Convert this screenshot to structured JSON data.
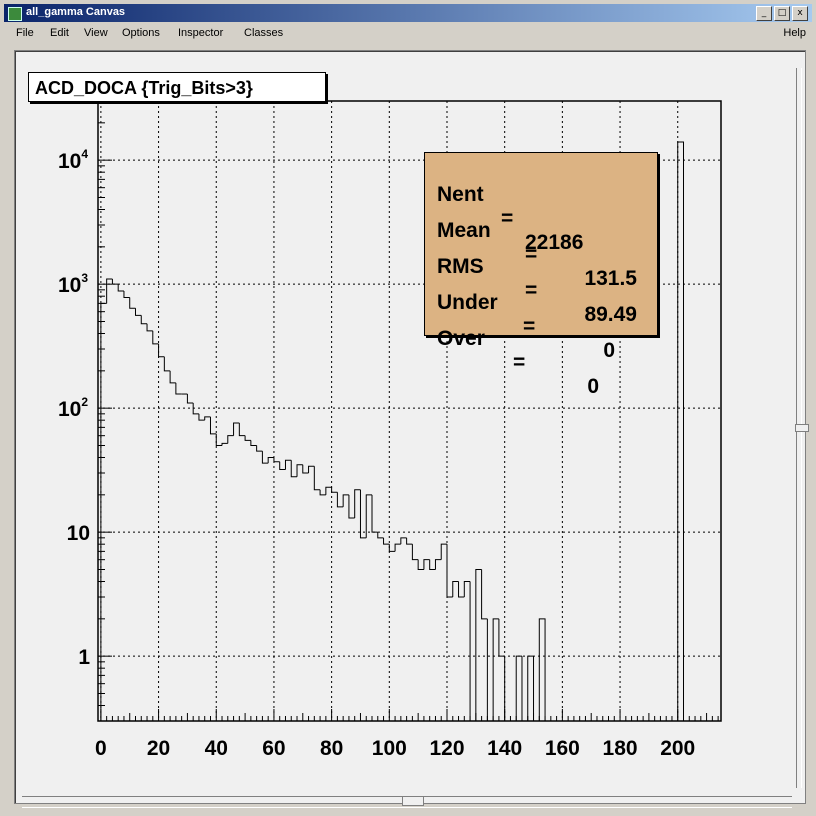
{
  "window": {
    "title": "all_gamma Canvas",
    "buttons": [
      "_",
      "□",
      "x"
    ]
  },
  "menu": {
    "items": [
      "File",
      "Edit",
      "View",
      "Options",
      "Inspector",
      "Classes"
    ],
    "help": "Help"
  },
  "histogram_title": "ACD_DOCA {Trig_Bits>3}",
  "stats": {
    "nent_label": "Nent",
    "nent_value": "22186",
    "mean_label": "Mean",
    "mean_value": "131.5",
    "rms_label": "RMS",
    "rms_value": "89.49",
    "under_label": "Under",
    "under_value": "0",
    "over_label": "Over",
    "over_value": "0",
    "box_color": "#dcb383"
  },
  "chart_data": {
    "type": "histogram",
    "title": "ACD_DOCA {Trig_Bits>3}",
    "xlim": [
      -1,
      215
    ],
    "ylim": [
      0.3,
      30000
    ],
    "yscale": "log",
    "grid": true,
    "bin_width": 2,
    "x_ticks": [
      "0",
      "20",
      "40",
      "60",
      "80",
      "100",
      "120",
      "140",
      "160",
      "180",
      "200"
    ],
    "x_tick_values": [
      0,
      20,
      40,
      60,
      80,
      100,
      120,
      140,
      160,
      180,
      200
    ],
    "y_ticks": [
      "1",
      "10",
      "10^2",
      "10^3",
      "10^4"
    ],
    "y_tick_values": [
      1,
      10,
      100,
      1000,
      10000
    ],
    "bins": [
      {
        "x0": 0,
        "x1": 2,
        "y": 700
      },
      {
        "x0": 2,
        "x1": 4,
        "y": 1100
      },
      {
        "x0": 4,
        "x1": 6,
        "y": 1000
      },
      {
        "x0": 6,
        "x1": 8,
        "y": 880
      },
      {
        "x0": 8,
        "x1": 10,
        "y": 780
      },
      {
        "x0": 10,
        "x1": 12,
        "y": 640
      },
      {
        "x0": 12,
        "x1": 14,
        "y": 560
      },
      {
        "x0": 14,
        "x1": 16,
        "y": 480
      },
      {
        "x0": 16,
        "x1": 18,
        "y": 420
      },
      {
        "x0": 18,
        "x1": 20,
        "y": 330
      },
      {
        "x0": 20,
        "x1": 22,
        "y": 260
      },
      {
        "x0": 22,
        "x1": 24,
        "y": 200
      },
      {
        "x0": 24,
        "x1": 26,
        "y": 160
      },
      {
        "x0": 26,
        "x1": 28,
        "y": 130
      },
      {
        "x0": 28,
        "x1": 30,
        "y": 130
      },
      {
        "x0": 30,
        "x1": 32,
        "y": 110
      },
      {
        "x0": 32,
        "x1": 34,
        "y": 90
      },
      {
        "x0": 34,
        "x1": 36,
        "y": 80
      },
      {
        "x0": 36,
        "x1": 38,
        "y": 85
      },
      {
        "x0": 38,
        "x1": 40,
        "y": 62
      },
      {
        "x0": 40,
        "x1": 42,
        "y": 50
      },
      {
        "x0": 42,
        "x1": 44,
        "y": 52
      },
      {
        "x0": 44,
        "x1": 46,
        "y": 60
      },
      {
        "x0": 46,
        "x1": 48,
        "y": 76
      },
      {
        "x0": 48,
        "x1": 50,
        "y": 60
      },
      {
        "x0": 50,
        "x1": 52,
        "y": 55
      },
      {
        "x0": 52,
        "x1": 54,
        "y": 50
      },
      {
        "x0": 54,
        "x1": 56,
        "y": 45
      },
      {
        "x0": 56,
        "x1": 58,
        "y": 36
      },
      {
        "x0": 58,
        "x1": 60,
        "y": 40
      },
      {
        "x0": 60,
        "x1": 62,
        "y": 37
      },
      {
        "x0": 62,
        "x1": 64,
        "y": 32
      },
      {
        "x0": 64,
        "x1": 66,
        "y": 38
      },
      {
        "x0": 66,
        "x1": 68,
        "y": 28
      },
      {
        "x0": 68,
        "x1": 70,
        "y": 35
      },
      {
        "x0": 70,
        "x1": 72,
        "y": 30
      },
      {
        "x0": 72,
        "x1": 74,
        "y": 34
      },
      {
        "x0": 74,
        "x1": 76,
        "y": 22
      },
      {
        "x0": 76,
        "x1": 78,
        "y": 20
      },
      {
        "x0": 78,
        "x1": 80,
        "y": 23
      },
      {
        "x0": 80,
        "x1": 82,
        "y": 21
      },
      {
        "x0": 82,
        "x1": 84,
        "y": 16
      },
      {
        "x0": 84,
        "x1": 86,
        "y": 20
      },
      {
        "x0": 86,
        "x1": 88,
        "y": 13
      },
      {
        "x0": 88,
        "x1": 90,
        "y": 22
      },
      {
        "x0": 90,
        "x1": 92,
        "y": 9
      },
      {
        "x0": 92,
        "x1": 94,
        "y": 20
      },
      {
        "x0": 94,
        "x1": 96,
        "y": 10
      },
      {
        "x0": 96,
        "x1": 98,
        "y": 9
      },
      {
        "x0": 98,
        "x1": 100,
        "y": 8
      },
      {
        "x0": 100,
        "x1": 102,
        "y": 7
      },
      {
        "x0": 102,
        "x1": 104,
        "y": 8
      },
      {
        "x0": 104,
        "x1": 106,
        "y": 9
      },
      {
        "x0": 106,
        "x1": 108,
        "y": 8
      },
      {
        "x0": 108,
        "x1": 110,
        "y": 6
      },
      {
        "x0": 110,
        "x1": 112,
        "y": 5
      },
      {
        "x0": 112,
        "x1": 114,
        "y": 6
      },
      {
        "x0": 114,
        "x1": 116,
        "y": 5
      },
      {
        "x0": 116,
        "x1": 118,
        "y": 6
      },
      {
        "x0": 118,
        "x1": 120,
        "y": 8
      },
      {
        "x0": 120,
        "x1": 122,
        "y": 3
      },
      {
        "x0": 122,
        "x1": 124,
        "y": 4
      },
      {
        "x0": 124,
        "x1": 126,
        "y": 3
      },
      {
        "x0": 126,
        "x1": 128,
        "y": 4
      },
      {
        "x0": 128,
        "x1": 130,
        "y": 0
      },
      {
        "x0": 130,
        "x1": 132,
        "y": 5
      },
      {
        "x0": 132,
        "x1": 134,
        "y": 2
      },
      {
        "x0": 134,
        "x1": 136,
        "y": 0
      },
      {
        "x0": 136,
        "x1": 138,
        "y": 2
      },
      {
        "x0": 138,
        "x1": 140,
        "y": 1
      },
      {
        "x0": 140,
        "x1": 142,
        "y": 0
      },
      {
        "x0": 142,
        "x1": 144,
        "y": 0
      },
      {
        "x0": 144,
        "x1": 146,
        "y": 1
      },
      {
        "x0": 146,
        "x1": 148,
        "y": 0
      },
      {
        "x0": 148,
        "x1": 150,
        "y": 1
      },
      {
        "x0": 150,
        "x1": 152,
        "y": 0
      },
      {
        "x0": 152,
        "x1": 154,
        "y": 2
      },
      {
        "x0": 200,
        "x1": 202,
        "y": 14000
      }
    ]
  }
}
